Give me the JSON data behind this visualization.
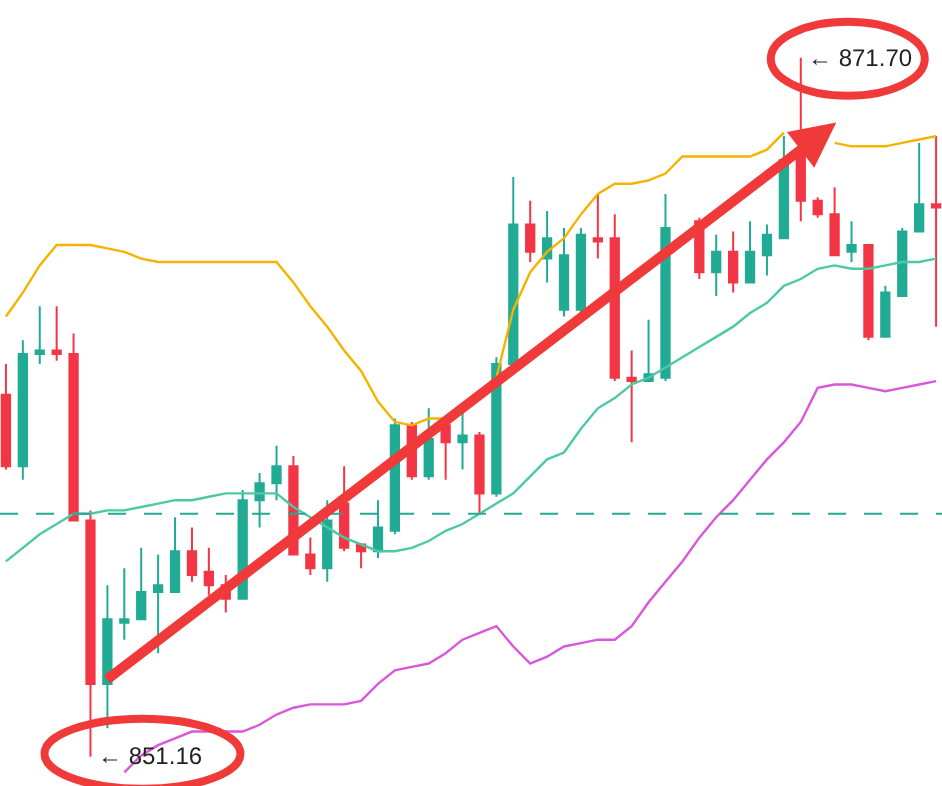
{
  "chart_data": {
    "type": "candlestick",
    "categories": [
      null,
      null,
      null,
      null,
      null,
      null,
      null,
      null,
      null,
      null,
      null,
      null,
      null,
      null,
      null,
      null,
      null,
      null,
      null,
      null,
      null,
      null,
      null,
      null,
      null,
      null,
      null,
      null,
      null,
      null,
      null,
      null,
      null,
      null,
      null,
      null,
      null,
      null,
      null,
      null,
      null,
      null,
      null,
      null,
      null,
      null,
      null,
      null,
      null,
      null,
      null,
      null,
      null,
      null,
      null,
      null
    ],
    "ohlc": [
      [
        861.8,
        862.7,
        859.6,
        859.7
      ],
      [
        859.7,
        863.4,
        859.3,
        863.0
      ],
      [
        863.0,
        864.4,
        862.7,
        863.1
      ],
      [
        863.1,
        864.4,
        862.8,
        863.0
      ],
      [
        863.0,
        863.6,
        858.1,
        858.1
      ],
      [
        858.1,
        858.4,
        851.16,
        853.3
      ],
      [
        853.3,
        856.2,
        852.0,
        855.2
      ],
      [
        855.1,
        856.7,
        854.6,
        855.2
      ],
      [
        855.2,
        857.3,
        855.2,
        856.0
      ],
      [
        856.0,
        857.1,
        854.2,
        856.2
      ],
      [
        856.0,
        858.2,
        856.0,
        857.2
      ],
      [
        857.2,
        857.9,
        856.3,
        856.5
      ],
      [
        856.6,
        857.3,
        855.9,
        856.2
      ],
      [
        856.2,
        856.5,
        855.4,
        855.8
      ],
      [
        855.8,
        859.0,
        855.8,
        858.7
      ],
      [
        858.7,
        859.5,
        857.9,
        859.2
      ],
      [
        859.2,
        860.3,
        858.7,
        859.7
      ],
      [
        859.7,
        860.0,
        857.1,
        857.1
      ],
      [
        857.1,
        857.6,
        856.5,
        856.7
      ],
      [
        856.7,
        858.7,
        856.3,
        858.1
      ],
      [
        858.6,
        859.7,
        857.2,
        857.3
      ],
      [
        857.4,
        857.4,
        856.7,
        857.2
      ],
      [
        857.2,
        858.7,
        857.0,
        857.9
      ],
      [
        857.8,
        861.1,
        857.7,
        860.9
      ],
      [
        860.9,
        861.0,
        859.3,
        859.4
      ],
      [
        859.4,
        861.4,
        859.3,
        860.5
      ],
      [
        860.9,
        861.0,
        859.3,
        860.4
      ],
      [
        860.4,
        861.3,
        859.6,
        860.6
      ],
      [
        860.6,
        860.7,
        858.3,
        858.9
      ],
      [
        858.9,
        862.9,
        858.8,
        862.7
      ],
      [
        862.7,
        868.2,
        862.6,
        866.8
      ],
      [
        866.8,
        867.5,
        865.7,
        866.0
      ],
      [
        865.8,
        867.2,
        865.1,
        866.4
      ],
      [
        864.3,
        866.7,
        864.1,
        865.9
      ],
      [
        864.3,
        866.7,
        864.1,
        866.5
      ],
      [
        866.4,
        867.7,
        865.8,
        866.3
      ],
      [
        866.4,
        867.1,
        862.2,
        862.3
      ],
      [
        862.3,
        863.1,
        860.4,
        862.2
      ],
      [
        862.2,
        864.0,
        862.2,
        862.4
      ],
      [
        862.3,
        867.7,
        862.2,
        866.7
      ],
      null,
      [
        866.9,
        867.0,
        865.2,
        865.4
      ],
      [
        865.4,
        866.5,
        864.7,
        866.0
      ],
      [
        866.0,
        866.6,
        864.8,
        865.1
      ],
      [
        865.1,
        866.9,
        865.1,
        866.0
      ],
      [
        865.9,
        866.8,
        865.3,
        866.5
      ],
      [
        866.4,
        869.4,
        866.4,
        868.7
      ],
      [
        868.9,
        871.7,
        866.9,
        867.5
      ],
      [
        867.5,
        867.6,
        867.0,
        867.1
      ],
      [
        867.1,
        867.9,
        865.9,
        865.9
      ],
      [
        866.0,
        866.9,
        865.7,
        866.2
      ],
      [
        866.2,
        866.2,
        863.4,
        863.5
      ],
      [
        863.5,
        865.0,
        863.5,
        864.8
      ],
      [
        864.7,
        866.7,
        864.7,
        866.6
      ],
      [
        866.6,
        869.2,
        866.6,
        867.4
      ],
      [
        867.4,
        869.4,
        863.8,
        867.3
      ]
    ],
    "colors": [
      "#f23645",
      "#22ab94",
      "#22ab94",
      "#f23645",
      "#f23645",
      "#f23645",
      "#22ab94",
      "#22ab94",
      "#22ab94",
      "#22ab94",
      "#22ab94",
      "#f23645",
      "#f23645",
      "#f23645",
      "#22ab94",
      "#22ab94",
      "#22ab94",
      "#f23645",
      "#f23645",
      "#22ab94",
      "#f23645",
      "#f23645",
      "#22ab94",
      "#22ab94",
      "#f23645",
      "#22ab94",
      "#f23645",
      "#22ab94",
      "#f23645",
      "#22ab94",
      "#22ab94",
      "#f23645",
      "#22ab94",
      "#22ab94",
      "#22ab94",
      "#f23645",
      "#f23645",
      "#f23645",
      "#22ab94",
      "#22ab94",
      null,
      "#f23645",
      "#22ab94",
      "#f23645",
      "#22ab94",
      "#22ab94",
      "#22ab94",
      "#f23645",
      "#f23645",
      "#f23645",
      "#22ab94",
      "#f23645",
      "#22ab94",
      "#22ab94",
      "#22ab94",
      "#f23645"
    ],
    "series": [
      {
        "type": "line",
        "color": "#f5b300",
        "values": [
          864.1,
          864.8,
          865.6,
          866.2,
          866.2,
          866.2,
          866.1,
          866.0,
          865.8,
          865.7,
          865.7,
          865.7,
          865.7,
          865.7,
          865.7,
          865.7,
          865.7,
          865.1,
          864.4,
          863.8,
          863.1,
          862.5,
          861.6,
          861.0,
          860.9,
          861.1,
          861.1,
          861.3,
          861.8,
          862.3,
          864.3,
          865.4,
          866.0,
          866.4,
          867.1,
          867.7,
          868.0,
          868.0,
          868.1,
          868.3,
          868.8,
          868.8,
          868.8,
          868.8,
          868.8,
          869.0,
          869.5,
          null,
          null,
          869.2,
          869.1,
          869.1,
          869.1,
          869.2,
          869.3,
          869.4
        ]
      },
      {
        "type": "line",
        "color": "#4cc9a4",
        "values": [
          856.9,
          857.3,
          857.7,
          858.0,
          858.3,
          858.3,
          858.4,
          858.4,
          858.5,
          858.6,
          858.7,
          858.7,
          858.8,
          858.9,
          858.9,
          858.9,
          858.9,
          858.5,
          858.2,
          857.9,
          857.6,
          857.4,
          857.2,
          857.2,
          857.3,
          857.5,
          857.8,
          858.0,
          858.3,
          858.6,
          858.9,
          859.4,
          859.9,
          860.1,
          860.8,
          861.4,
          861.7,
          862.1,
          862.3,
          862.6,
          862.9,
          863.2,
          863.5,
          863.8,
          864.2,
          864.5,
          865.0,
          865.2,
          865.5,
          865.6,
          865.5,
          865.5,
          865.6,
          865.7,
          865.7,
          865.8
        ]
      },
      {
        "type": "line",
        "color": "#d957d9",
        "values": [
          null,
          null,
          null,
          null,
          null,
          null,
          null,
          850.7,
          851.2,
          851.5,
          851.7,
          851.9,
          851.9,
          851.9,
          851.9,
          852.1,
          852.4,
          852.6,
          852.7,
          852.7,
          852.7,
          852.8,
          853.3,
          853.7,
          853.8,
          853.9,
          854.2,
          854.6,
          854.8,
          855.0,
          854.4,
          853.9,
          854.1,
          854.4,
          854.5,
          854.6,
          854.6,
          855.0,
          855.7,
          856.3,
          856.9,
          857.6,
          858.2,
          858.7,
          859.3,
          859.9,
          860.4,
          861.0,
          862.0,
          862.1,
          862.1,
          862.0,
          861.9,
          862.0,
          862.1,
          862.2
        ]
      }
    ],
    "ylim": [
      850.3,
      873.4
    ],
    "ref_lines": [
      {
        "axis": "y",
        "value": 858.3,
        "color": "#22ab94",
        "line_style": "dashed"
      }
    ],
    "annotations": [
      "← 851.16",
      "← 871.70"
    ],
    "tick_labels": false
  }
}
